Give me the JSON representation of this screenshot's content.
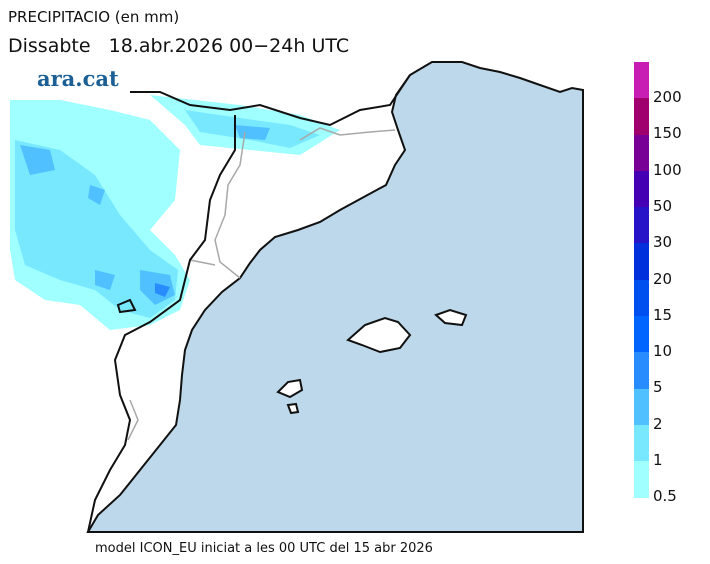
{
  "title": "PRECIPITACIO (en mm)",
  "subtitle": "Dissabte   18.abr.2026 00−24h UTC",
  "logo": "ara.cat",
  "footer": "model ICON_EU iniciat a les 00 UTC del 15 abr 2026",
  "colors": {
    "sea": "#bcd8ea",
    "land": "#ffffff",
    "coast": "#111111",
    "border": "#a8a8a8"
  },
  "legend": {
    "labels": [
      "200",
      "150",
      "100",
      "50",
      "30",
      "20",
      "15",
      "10",
      "5",
      "2",
      "1",
      "0.5"
    ],
    "colors": [
      "#c81eb4",
      "#a0006e",
      "#780096",
      "#4600b4",
      "#2814c8",
      "#0030dc",
      "#0050f0",
      "#0064ff",
      "#288cff",
      "#50c0ff",
      "#78e8ff",
      "#a0ffff"
    ]
  }
}
